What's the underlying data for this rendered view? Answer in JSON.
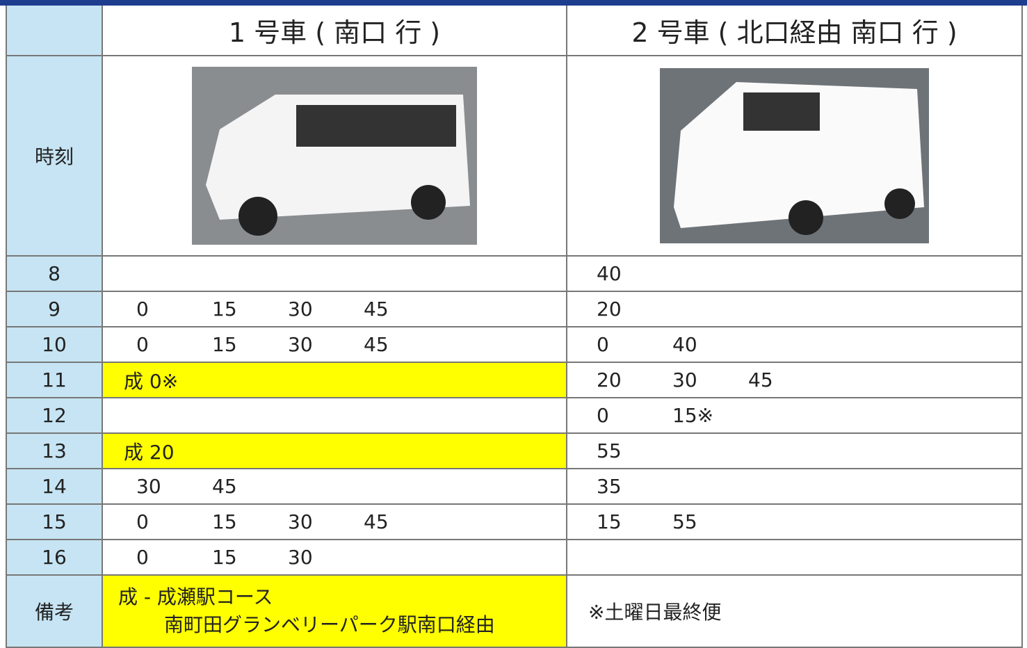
{
  "header": {
    "car1": "1 号車 ( 南口 行 )",
    "car2": "2 号車 ( 北口経由 南口 行 )",
    "time_label": "時刻"
  },
  "rows": [
    {
      "hour": "8",
      "car1": [],
      "car2": [
        "40"
      ]
    },
    {
      "hour": "9",
      "car1": [
        "0",
        "15",
        "30",
        "45"
      ],
      "car2": [
        "20"
      ]
    },
    {
      "hour": "10",
      "car1": [
        "0",
        "15",
        "30",
        "45"
      ],
      "car2": [
        "0",
        "40"
      ]
    },
    {
      "hour": "11",
      "car1": [
        "成 0※"
      ],
      "car1_highlight": true,
      "car2": [
        "20",
        "30",
        "45"
      ]
    },
    {
      "hour": "12",
      "car1": [],
      "car2": [
        "0",
        "15※"
      ]
    },
    {
      "hour": "13",
      "car1": [
        "成 20"
      ],
      "car1_highlight": true,
      "car2": [
        "55"
      ]
    },
    {
      "hour": "14",
      "car1": [
        "30",
        "45"
      ],
      "car2": [
        "35"
      ]
    },
    {
      "hour": "15",
      "car1": [
        "0",
        "15",
        "30",
        "45"
      ],
      "car2": [
        "15",
        "55"
      ]
    },
    {
      "hour": "16",
      "car1": [
        "0",
        "15",
        "30"
      ],
      "car2": []
    }
  ],
  "notes": {
    "label": "備考",
    "car1": [
      "成 - 成瀬駅コース",
      "南町田グランベリーパーク駅南口経由"
    ],
    "car2": "※土曜日最終便"
  }
}
